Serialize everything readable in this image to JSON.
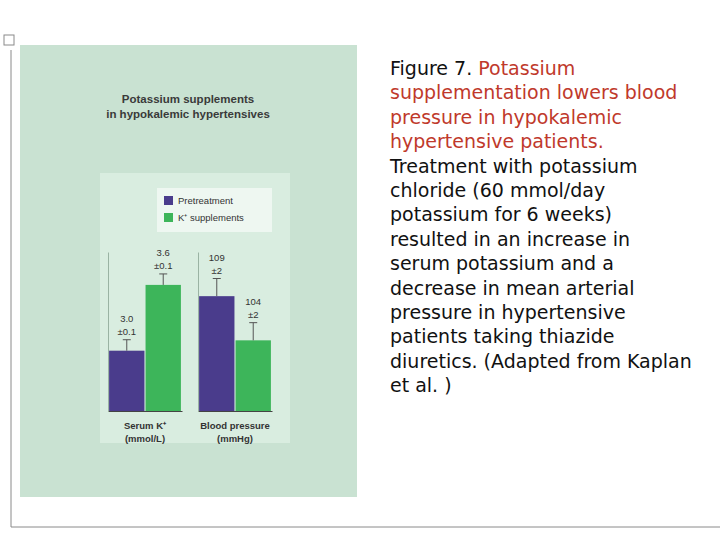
{
  "chart_data": [
    {
      "type": "bar",
      "title": "Potassium supplements in hypokalemic hypertensives",
      "categories": [
        "Serum K⁺ (mmol/L)"
      ],
      "series": [
        {
          "name": "Pretreatment",
          "color": "#4a3c8c",
          "values": [
            3.0
          ],
          "errors": [
            0.1
          ],
          "value_labels": [
            "3.0 ±0.1"
          ]
        },
        {
          "name": "K⁺ supplements",
          "color": "#3db55a",
          "values": [
            3.6
          ],
          "errors": [
            0.1
          ],
          "value_labels": [
            "3.6 ±0.1"
          ]
        }
      ],
      "ylim": [
        2.45,
        3.9
      ],
      "tick_labels": "x",
      "data_labels": true,
      "legend": "top-right"
    },
    {
      "type": "bar",
      "categories": [
        "Blood pressure (mmHg)"
      ],
      "series": [
        {
          "color": "#4a3c8c",
          "values": [
            109
          ],
          "errors": [
            2
          ],
          "value_labels": [
            "109 ±2"
          ]
        },
        {
          "color": "#3db55a",
          "values": [
            104
          ],
          "errors": [
            2
          ],
          "value_labels": [
            "104 ±2"
          ]
        }
      ],
      "ylim": [
        96,
        114
      ],
      "tick_labels": "x",
      "data_labels": true
    }
  ],
  "caption": {
    "label": "Figure 7.",
    "heading": "Potassium supplementation lowers blood pressure in hypokalemic hypertensive patients.",
    "text": "Treatment with potassium chloride (60 mmol/day potassium for 6 weeks) resulted in an increase in serum potassium and a decrease in mean arterial pressure in hypertensive patients taking thiazide diuretics. (Adapted from Kaplan et al. )"
  }
}
